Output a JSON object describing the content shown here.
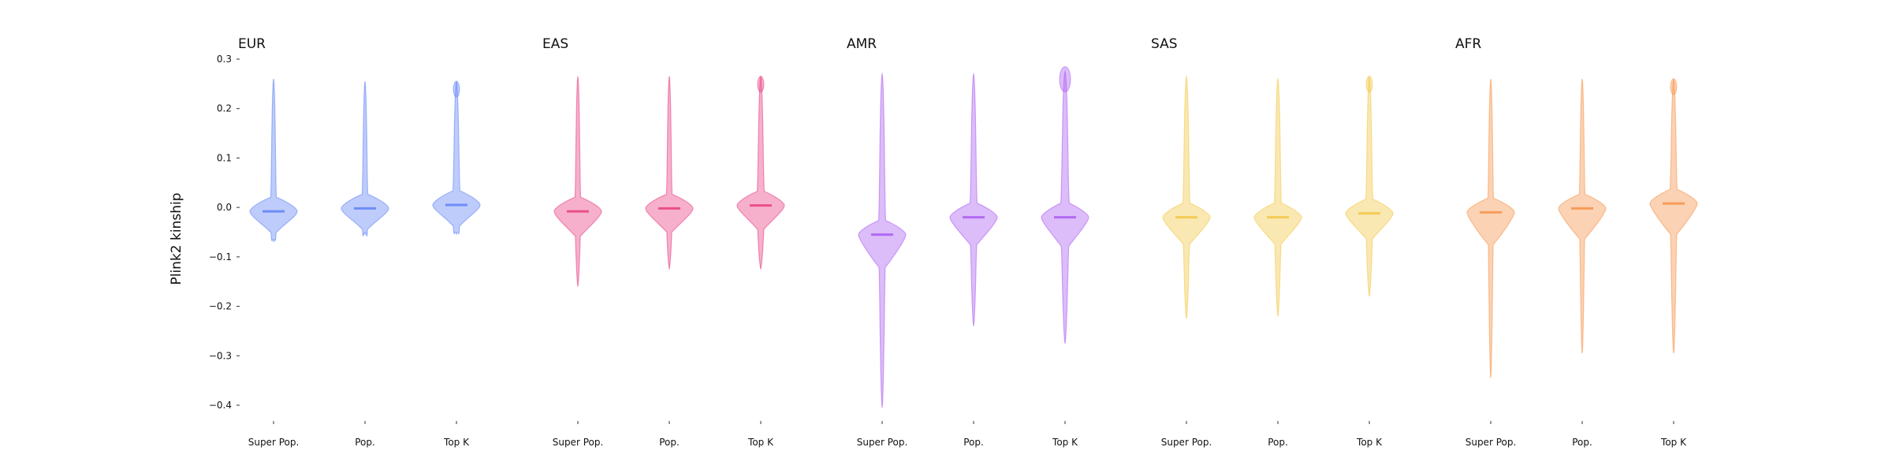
{
  "chart_data": {
    "type": "violin",
    "ylabel": "Plink2 kinship",
    "ylim": [
      -0.44,
      0.31
    ],
    "yticks": [
      0.3,
      0.2,
      0.1,
      0.0,
      -0.1,
      -0.2,
      -0.3,
      -0.4
    ],
    "ytick_labels": [
      "0.3",
      "0.2",
      "0.1",
      "0.0",
      "−0.1",
      "−0.2",
      "−0.3",
      "−0.4"
    ],
    "categories": [
      "Super Pop.",
      "Pop.",
      "Top K"
    ],
    "grid": false,
    "panels": [
      {
        "title": "EUR",
        "color": "#6e8df7",
        "violins": [
          {
            "category": "Super Pop.",
            "min": -0.07,
            "max": 0.26,
            "median": -0.008,
            "body_width": 0.5,
            "tail_width": 0.04
          },
          {
            "category": "Pop.",
            "min": -0.055,
            "max": 0.255,
            "median": -0.002,
            "body_width": 0.5,
            "tail_width": 0.04
          },
          {
            "category": "Top K",
            "min": -0.055,
            "max": 0.255,
            "median": 0.005,
            "body_width": 0.5,
            "tail_width": 0.05,
            "top_bulb": true
          }
        ]
      },
      {
        "title": "EAS",
        "color": "#ea4f8c",
        "violins": [
          {
            "category": "Super Pop.",
            "min": -0.16,
            "max": 0.265,
            "median": -0.008,
            "body_width": 0.5,
            "tail_width": 0.04
          },
          {
            "category": "Pop.",
            "min": -0.125,
            "max": 0.265,
            "median": -0.002,
            "body_width": 0.5,
            "tail_width": 0.04
          },
          {
            "category": "Top K",
            "min": -0.125,
            "max": 0.265,
            "median": 0.004,
            "body_width": 0.5,
            "tail_width": 0.05,
            "top_bulb": true
          }
        ]
      },
      {
        "title": "AMR",
        "color": "#b26af2",
        "violins": [
          {
            "category": "Super Pop.",
            "min": -0.405,
            "max": 0.27,
            "median": -0.055,
            "body_width": 0.5,
            "tail_width": 0.05
          },
          {
            "category": "Pop.",
            "min": -0.24,
            "max": 0.27,
            "median": -0.02,
            "body_width": 0.5,
            "tail_width": 0.05
          },
          {
            "category": "Top K",
            "min": -0.275,
            "max": 0.275,
            "median": -0.02,
            "body_width": 0.5,
            "tail_width": 0.06,
            "top_bulb": true
          }
        ]
      },
      {
        "title": "SAS",
        "color": "#f3cc55",
        "violins": [
          {
            "category": "Super Pop.",
            "min": -0.225,
            "max": 0.265,
            "median": -0.02,
            "body_width": 0.5,
            "tail_width": 0.05
          },
          {
            "category": "Pop.",
            "min": -0.22,
            "max": 0.26,
            "median": -0.02,
            "body_width": 0.5,
            "tail_width": 0.05
          },
          {
            "category": "Top K",
            "min": -0.18,
            "max": 0.265,
            "median": -0.012,
            "body_width": 0.5,
            "tail_width": 0.05,
            "top_bulb": true
          }
        ]
      },
      {
        "title": "AFR",
        "color": "#f79c58",
        "violins": [
          {
            "category": "Super Pop.",
            "min": -0.345,
            "max": 0.26,
            "median": -0.01,
            "body_width": 0.5,
            "tail_width": 0.04
          },
          {
            "category": "Pop.",
            "min": -0.295,
            "max": 0.26,
            "median": -0.002,
            "body_width": 0.5,
            "tail_width": 0.04
          },
          {
            "category": "Top K",
            "min": -0.295,
            "max": 0.26,
            "median": 0.008,
            "body_width": 0.5,
            "tail_width": 0.05,
            "top_bulb": true
          }
        ]
      }
    ]
  }
}
